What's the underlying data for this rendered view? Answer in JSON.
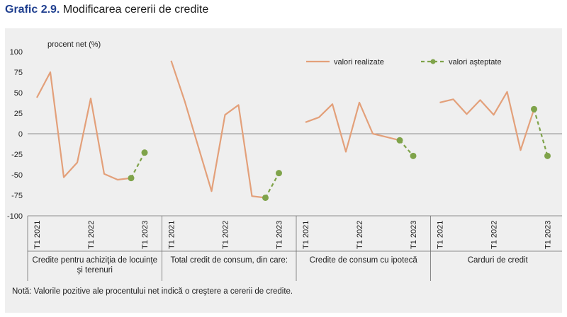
{
  "title": {
    "number": "Grafic 2.9.",
    "text": "Modificarea cererii de credite"
  },
  "note": "Notă: Valorile pozitive ale procentului net indică o creştere a cererii de credite.",
  "colors": {
    "realized": "#e3a07a",
    "expected": "#7fa34a",
    "background": "#efefef"
  },
  "chart_data": {
    "type": "line",
    "ylabel": "procent net (%)",
    "ylim": [
      -100,
      100
    ],
    "yticks": [
      100,
      75,
      50,
      25,
      0,
      -25,
      -50,
      -75,
      -100
    ],
    "grid": false,
    "legend": {
      "placement": "top-right",
      "entries": [
        "valori realizate",
        "valori aşteptate"
      ]
    },
    "groups": [
      {
        "label": "Credite pentru achiziţia de locuinţe şi terenuri",
        "label_lines": [
          "Credite pentru achiziţia de locuinţe",
          "şi terenuri"
        ],
        "x": [
          "T1 2021",
          "T2 2021",
          "T3 2021",
          "T4 2021",
          "T1 2022",
          "T2 2022",
          "T3 2022",
          "T4 2022",
          "T1 2023",
          "T2 2023"
        ],
        "x_tick_labels": [
          "T1 2021",
          "",
          "",
          "",
          "T1 2022",
          "",
          "",
          "",
          "T1 2023",
          ""
        ],
        "series": [
          {
            "name": "valori realizate",
            "values": [
              44,
              75,
              -53,
              -35,
              43,
              -49,
              -56,
              -54,
              null,
              null
            ]
          },
          {
            "name": "valori aşteptate",
            "values": [
              null,
              null,
              null,
              null,
              null,
              null,
              null,
              -54,
              -23,
              null
            ]
          }
        ]
      },
      {
        "label": "Total credit de consum, din care:",
        "label_lines": [
          "Total credit de consum, din care:"
        ],
        "x": [
          "T1 2021",
          "T2 2021",
          "T3 2021",
          "T4 2021",
          "T1 2022",
          "T2 2022",
          "T3 2022",
          "T4 2022",
          "T1 2023",
          "T2 2023"
        ],
        "x_tick_labels": [
          "T1 2021",
          "",
          "",
          "",
          "T1 2022",
          "",
          "",
          "",
          "T1 2023",
          ""
        ],
        "series": [
          {
            "name": "valori realizate",
            "values": [
              89,
              40,
              -15,
              -70,
              23,
              35,
              -76,
              -78,
              null,
              null
            ]
          },
          {
            "name": "valori aşteptate",
            "values": [
              null,
              null,
              null,
              null,
              null,
              null,
              null,
              -78,
              -48,
              null
            ]
          }
        ]
      },
      {
        "label": "Credite de consum cu ipotecă",
        "label_lines": [
          "Credite de consum cu ipotecă"
        ],
        "x": [
          "T1 2021",
          "T2 2021",
          "T3 2021",
          "T4 2021",
          "T1 2022",
          "T2 2022",
          "T3 2022",
          "T4 2022",
          "T1 2023",
          "T2 2023"
        ],
        "x_tick_labels": [
          "T1 2021",
          "",
          "",
          "",
          "T1 2022",
          "",
          "",
          "",
          "T1 2023",
          ""
        ],
        "series": [
          {
            "name": "valori realizate",
            "values": [
              14,
              20,
              36,
              -22,
              38,
              0,
              -4,
              -8,
              null,
              null
            ]
          },
          {
            "name": "valori aşteptate",
            "values": [
              null,
              null,
              null,
              null,
              null,
              null,
              null,
              -8,
              -27,
              null
            ]
          }
        ]
      },
      {
        "label": "Carduri de credit",
        "label_lines": [
          "Carduri de credit"
        ],
        "x": [
          "T1 2021",
          "T2 2021",
          "T3 2021",
          "T4 2021",
          "T1 2022",
          "T2 2022",
          "T3 2022",
          "T4 2022",
          "T1 2023",
          "T2 2023"
        ],
        "x_tick_labels": [
          "T1 2021",
          "",
          "",
          "",
          "T1 2022",
          "",
          "",
          "",
          "T1 2023",
          ""
        ],
        "series": [
          {
            "name": "valori realizate",
            "values": [
              38,
              42,
              24,
              41,
              23,
              51,
              -20,
              30,
              null,
              null
            ]
          },
          {
            "name": "valori aşteptate",
            "values": [
              null,
              null,
              null,
              null,
              null,
              null,
              null,
              30,
              -27,
              null
            ]
          }
        ]
      }
    ]
  }
}
